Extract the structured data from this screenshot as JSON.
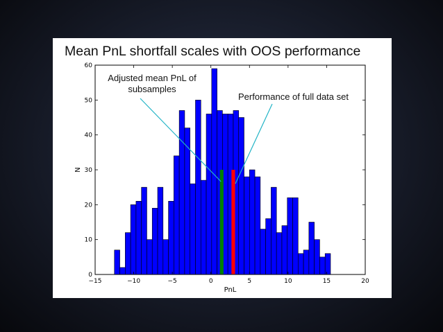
{
  "slide": {
    "title": "Mean PnL shortfall scales with OOS performance"
  },
  "annotations": {
    "adjusted_line1": "Adjusted mean PnL of",
    "adjusted_line2": "subsamples",
    "full": "Performance of full data set"
  },
  "colors": {
    "bar": "#0000ff",
    "adjusted_marker": "#008000",
    "full_marker": "#ff0000",
    "callout_line": "#22b4c6"
  },
  "chart_data": {
    "type": "bar",
    "title": "Mean PnL shortfall scales with OOS performance",
    "xlabel": "PnL",
    "ylabel": "N",
    "xlim": [
      -15,
      20
    ],
    "ylim": [
      0,
      60
    ],
    "xticks": [
      "−15",
      "−10",
      "−5",
      "0",
      "5",
      "10",
      "15",
      "20"
    ],
    "xtick_values": [
      -15,
      -10,
      -5,
      0,
      5,
      10,
      15,
      20
    ],
    "yticks": [
      "0",
      "10",
      "20",
      "30",
      "40",
      "50",
      "60"
    ],
    "ytick_values": [
      0,
      10,
      20,
      30,
      40,
      50,
      60
    ],
    "bin_start": -12.5,
    "bin_width": 0.7,
    "counts": [
      7,
      2,
      12,
      20,
      21,
      25,
      10,
      19,
      25,
      10,
      21,
      34,
      47,
      42,
      26,
      50,
      27,
      46,
      59,
      47,
      46,
      46,
      47,
      45,
      28,
      30,
      28,
      13,
      16,
      25,
      12,
      14,
      22,
      22,
      6,
      7,
      15,
      10,
      5,
      6
    ],
    "markers": [
      {
        "name": "Adjusted mean PnL of subsamples",
        "x": 1.4,
        "height": 30,
        "color": "#008000"
      },
      {
        "name": "Performance of full data set",
        "x": 2.9,
        "height": 30,
        "color": "#ff0000"
      }
    ]
  }
}
